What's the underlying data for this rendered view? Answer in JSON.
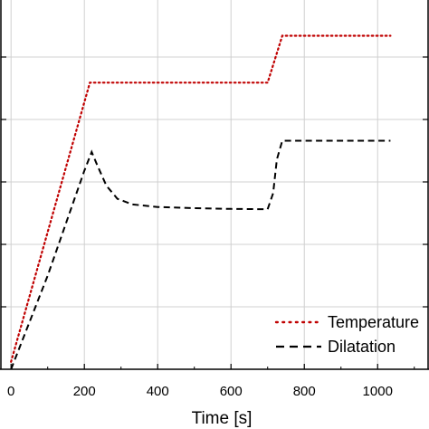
{
  "chart_data": {
    "type": "line",
    "title": "",
    "xlabel": "Time [s]",
    "ylabel": "",
    "xlim": [
      -40,
      1150
    ],
    "ylim": [
      0,
      1
    ],
    "xticks": [
      0,
      200,
      400,
      600,
      800,
      1000
    ],
    "grid": true,
    "legend": {
      "placement": "bottom-right"
    },
    "series": [
      {
        "name": "Temperature",
        "color": "#c00000",
        "style": "dotted",
        "x": [
          0,
          215,
          700,
          740,
          1035
        ],
        "y": [
          0.02,
          0.765,
          0.765,
          0.89,
          0.89
        ]
      },
      {
        "name": "Dilatation",
        "color": "#000000",
        "style": "dashed",
        "x": [
          0,
          100,
          200,
          220,
          235,
          260,
          290,
          330,
          400,
          500,
          600,
          700,
          715,
          725,
          740,
          1035
        ],
        "y": [
          0,
          0.25,
          0.53,
          0.58,
          0.545,
          0.49,
          0.455,
          0.44,
          0.433,
          0.43,
          0.428,
          0.427,
          0.47,
          0.56,
          0.61,
          0.61
        ]
      }
    ]
  }
}
